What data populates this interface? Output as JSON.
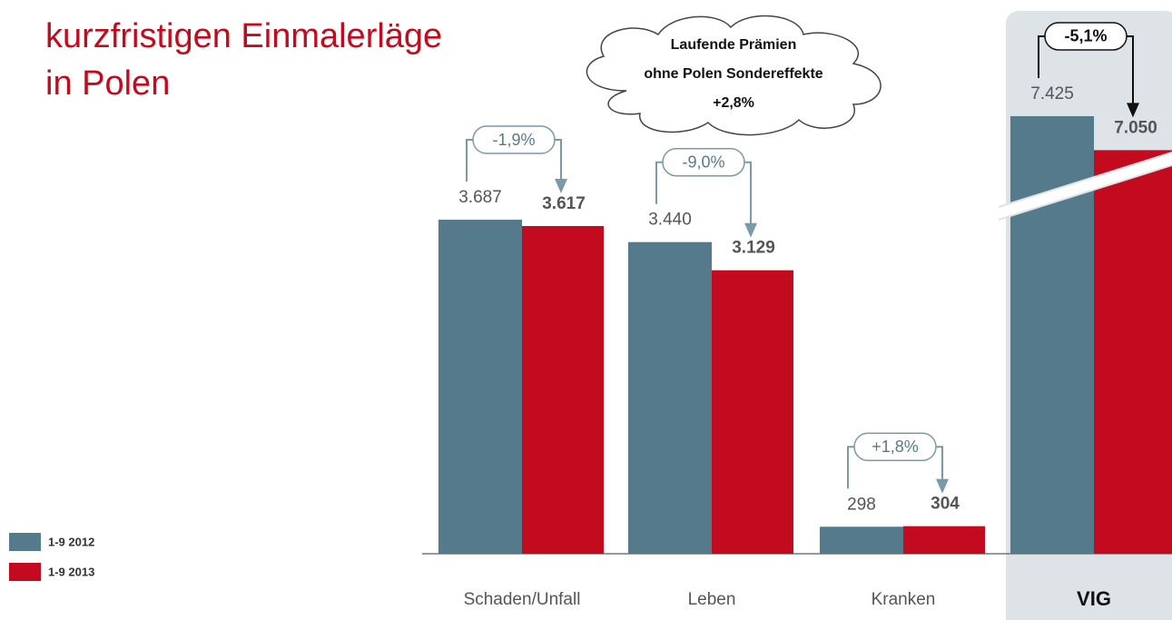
{
  "chart_data": {
    "type": "bar",
    "title": [
      "kurzfristigen Einmalerläge",
      "in Polen"
    ],
    "annotation": [
      "Laufende Prämien",
      "ohne Polen Sondereffekte",
      "+2,8%"
    ],
    "categories": [
      "Schaden/Unfall",
      "Leben",
      "Kranken",
      "VIG"
    ],
    "series": [
      {
        "name": "1-9 2012",
        "color": "#557a8c",
        "values": [
          3687,
          3440,
          298,
          7425
        ],
        "value_labels": [
          "3.687",
          "3.440",
          "298",
          "7.425"
        ]
      },
      {
        "name": "1-9 2013",
        "color": "#c40a1e",
        "values": [
          3617,
          3129,
          304,
          7050
        ],
        "value_labels": [
          "3.617",
          "3.129",
          "304",
          "7.050"
        ]
      }
    ],
    "changes": [
      "-1,9%",
      "-9,0%",
      "+1,8%",
      "-5,1%"
    ]
  }
}
